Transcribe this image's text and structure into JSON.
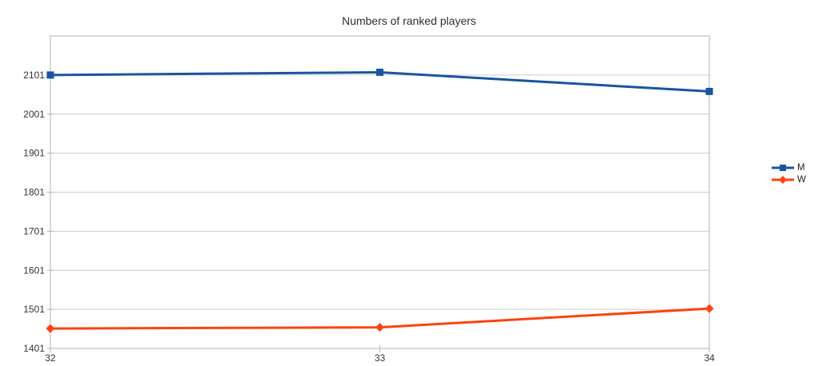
{
  "title": "Numbers of ranked players",
  "chart_data": {
    "type": "line",
    "title": "Numbers of ranked players",
    "x": [
      32,
      33,
      34
    ],
    "xticklabels": [
      "32",
      "33",
      "34"
    ],
    "xlim": [
      32,
      34
    ],
    "ylim": [
      1401,
      2201
    ],
    "yticks": [
      1401,
      1501,
      1601,
      1701,
      1801,
      1901,
      2001,
      2101
    ],
    "grid": "horizontal",
    "legend_position": "right",
    "series": [
      {
        "name": "M",
        "values": [
          2101,
          2108,
          2059
        ],
        "color": "#18559E",
        "marker": "square"
      },
      {
        "name": "W",
        "values": [
          1452,
          1455,
          1503
        ],
        "color": "#FF420E",
        "marker": "diamond"
      }
    ],
    "colors": {
      "background": "#ffffff",
      "grid": "#cccccc",
      "axis": "#b3b3b3",
      "tick_text": "#333333",
      "title_text": "#2e2e2e"
    }
  }
}
